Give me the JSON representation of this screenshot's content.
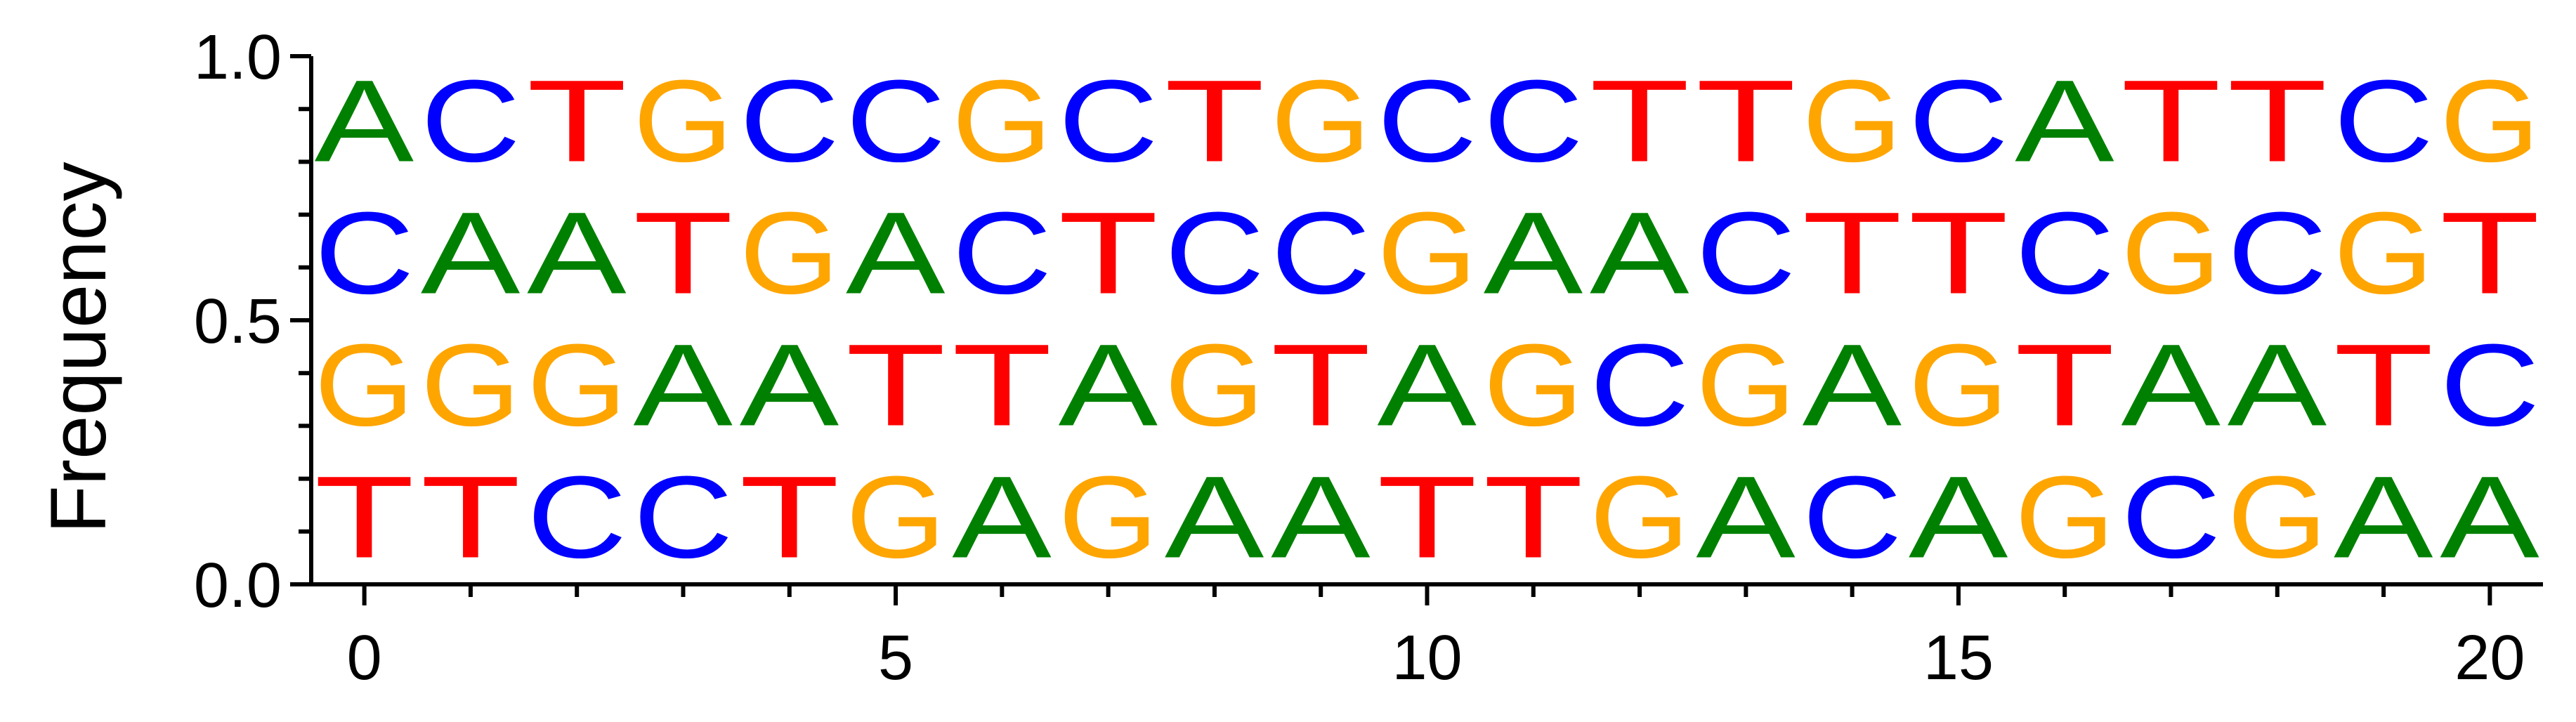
{
  "chart_data": {
    "type": "sequence-logo",
    "title": "",
    "xlabel": "",
    "ylabel": "Frequency",
    "xlim": [
      -0.5,
      20.5
    ],
    "ylim": [
      0,
      1
    ],
    "x_ticks": [
      "0",
      "5",
      "10",
      "15",
      "20"
    ],
    "y_ticks": [
      "0.0",
      "0.5",
      "1.0"
    ],
    "grid": false,
    "colors": {
      "A": "#008000",
      "C": "#0000ff",
      "G": "#ffa500",
      "T": "#ff0000"
    },
    "positions": [
      {
        "x": 0,
        "stack": [
          {
            "base": "T",
            "freq": 0.25
          },
          {
            "base": "G",
            "freq": 0.25
          },
          {
            "base": "C",
            "freq": 0.25
          },
          {
            "base": "A",
            "freq": 0.25
          }
        ]
      },
      {
        "x": 1,
        "stack": [
          {
            "base": "T",
            "freq": 0.25
          },
          {
            "base": "G",
            "freq": 0.25
          },
          {
            "base": "A",
            "freq": 0.25
          },
          {
            "base": "C",
            "freq": 0.25
          }
        ]
      },
      {
        "x": 2,
        "stack": [
          {
            "base": "C",
            "freq": 0.25
          },
          {
            "base": "G",
            "freq": 0.25
          },
          {
            "base": "A",
            "freq": 0.25
          },
          {
            "base": "T",
            "freq": 0.25
          }
        ]
      },
      {
        "x": 3,
        "stack": [
          {
            "base": "C",
            "freq": 0.25
          },
          {
            "base": "A",
            "freq": 0.25
          },
          {
            "base": "T",
            "freq": 0.25
          },
          {
            "base": "G",
            "freq": 0.25
          }
        ]
      },
      {
        "x": 4,
        "stack": [
          {
            "base": "T",
            "freq": 0.25
          },
          {
            "base": "A",
            "freq": 0.25
          },
          {
            "base": "G",
            "freq": 0.25
          },
          {
            "base": "C",
            "freq": 0.25
          }
        ]
      },
      {
        "x": 5,
        "stack": [
          {
            "base": "G",
            "freq": 0.25
          },
          {
            "base": "T",
            "freq": 0.25
          },
          {
            "base": "A",
            "freq": 0.25
          },
          {
            "base": "C",
            "freq": 0.25
          }
        ]
      },
      {
        "x": 6,
        "stack": [
          {
            "base": "A",
            "freq": 0.25
          },
          {
            "base": "T",
            "freq": 0.25
          },
          {
            "base": "C",
            "freq": 0.25
          },
          {
            "base": "G",
            "freq": 0.25
          }
        ]
      },
      {
        "x": 7,
        "stack": [
          {
            "base": "G",
            "freq": 0.25
          },
          {
            "base": "A",
            "freq": 0.25
          },
          {
            "base": "T",
            "freq": 0.25
          },
          {
            "base": "C",
            "freq": 0.25
          }
        ]
      },
      {
        "x": 8,
        "stack": [
          {
            "base": "A",
            "freq": 0.25
          },
          {
            "base": "G",
            "freq": 0.25
          },
          {
            "base": "C",
            "freq": 0.25
          },
          {
            "base": "T",
            "freq": 0.25
          }
        ]
      },
      {
        "x": 9,
        "stack": [
          {
            "base": "A",
            "freq": 0.25
          },
          {
            "base": "T",
            "freq": 0.25
          },
          {
            "base": "C",
            "freq": 0.25
          },
          {
            "base": "G",
            "freq": 0.25
          }
        ]
      },
      {
        "x": 10,
        "stack": [
          {
            "base": "T",
            "freq": 0.25
          },
          {
            "base": "A",
            "freq": 0.25
          },
          {
            "base": "G",
            "freq": 0.25
          },
          {
            "base": "C",
            "freq": 0.25
          }
        ]
      },
      {
        "x": 11,
        "stack": [
          {
            "base": "T",
            "freq": 0.25
          },
          {
            "base": "G",
            "freq": 0.25
          },
          {
            "base": "A",
            "freq": 0.25
          },
          {
            "base": "C",
            "freq": 0.25
          }
        ]
      },
      {
        "x": 12,
        "stack": [
          {
            "base": "G",
            "freq": 0.25
          },
          {
            "base": "C",
            "freq": 0.25
          },
          {
            "base": "A",
            "freq": 0.25
          },
          {
            "base": "T",
            "freq": 0.25
          }
        ]
      },
      {
        "x": 13,
        "stack": [
          {
            "base": "A",
            "freq": 0.25
          },
          {
            "base": "G",
            "freq": 0.25
          },
          {
            "base": "C",
            "freq": 0.25
          },
          {
            "base": "T",
            "freq": 0.25
          }
        ]
      },
      {
        "x": 14,
        "stack": [
          {
            "base": "C",
            "freq": 0.25
          },
          {
            "base": "A",
            "freq": 0.25
          },
          {
            "base": "T",
            "freq": 0.25
          },
          {
            "base": "G",
            "freq": 0.25
          }
        ]
      },
      {
        "x": 15,
        "stack": [
          {
            "base": "A",
            "freq": 0.25
          },
          {
            "base": "G",
            "freq": 0.25
          },
          {
            "base": "T",
            "freq": 0.25
          },
          {
            "base": "C",
            "freq": 0.25
          }
        ]
      },
      {
        "x": 16,
        "stack": [
          {
            "base": "G",
            "freq": 0.25
          },
          {
            "base": "T",
            "freq": 0.25
          },
          {
            "base": "C",
            "freq": 0.25
          },
          {
            "base": "A",
            "freq": 0.25
          }
        ]
      },
      {
        "x": 17,
        "stack": [
          {
            "base": "C",
            "freq": 0.25
          },
          {
            "base": "A",
            "freq": 0.25
          },
          {
            "base": "G",
            "freq": 0.25
          },
          {
            "base": "T",
            "freq": 0.25
          }
        ]
      },
      {
        "x": 18,
        "stack": [
          {
            "base": "G",
            "freq": 0.25
          },
          {
            "base": "A",
            "freq": 0.25
          },
          {
            "base": "C",
            "freq": 0.25
          },
          {
            "base": "T",
            "freq": 0.25
          }
        ]
      },
      {
        "x": 19,
        "stack": [
          {
            "base": "A",
            "freq": 0.25
          },
          {
            "base": "T",
            "freq": 0.25
          },
          {
            "base": "G",
            "freq": 0.25
          },
          {
            "base": "C",
            "freq": 0.25
          }
        ]
      },
      {
        "x": 20,
        "stack": [
          {
            "base": "A",
            "freq": 0.25
          },
          {
            "base": "C",
            "freq": 0.25
          },
          {
            "base": "T",
            "freq": 0.25
          },
          {
            "base": "G",
            "freq": 0.25
          }
        ]
      }
    ]
  }
}
